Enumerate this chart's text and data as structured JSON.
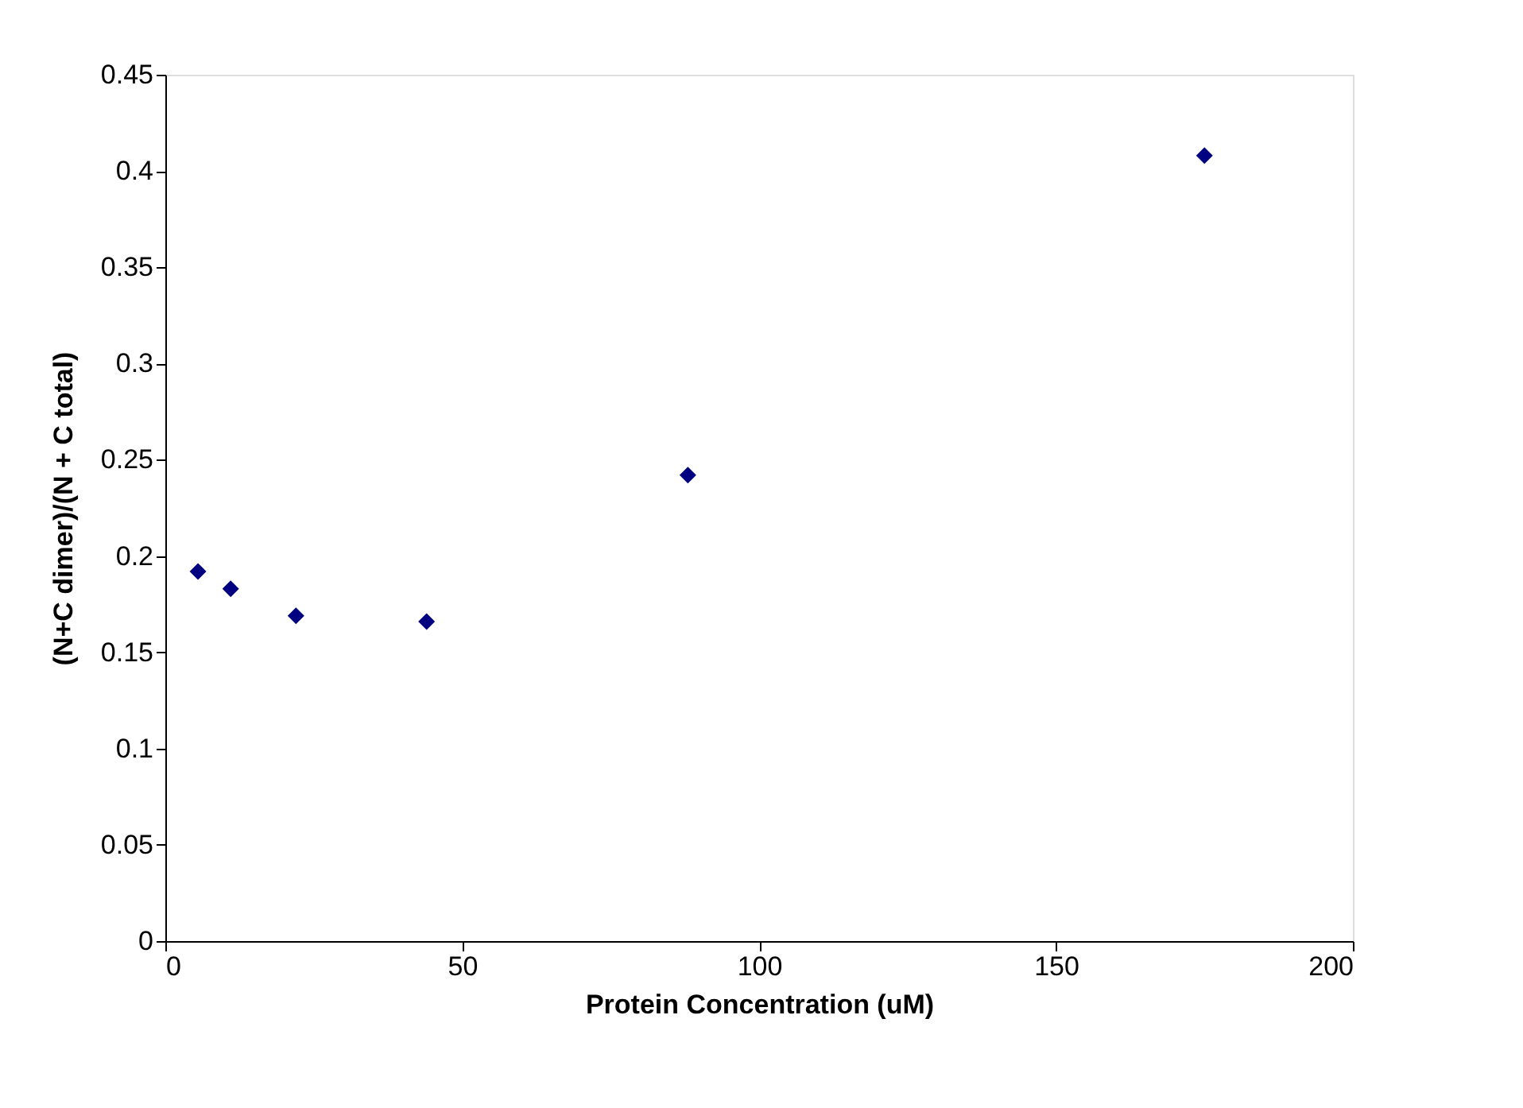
{
  "chart_data": {
    "type": "scatter",
    "xlabel": "Protein Concentration (uM)",
    "ylabel": "(N+C dimer)/(N + C total)",
    "x": [
      5.5,
      11,
      22,
      44,
      88,
      175
    ],
    "series": [
      {
        "color": "#000080",
        "values": [
          0.192,
          0.183,
          0.169,
          0.166,
          0.242,
          0.408
        ]
      }
    ],
    "xlim": [
      0,
      200
    ],
    "xticks": [
      0,
      50,
      100,
      150,
      200
    ],
    "ylim": [
      0,
      0.45
    ],
    "yticks": [
      0,
      0.05,
      0.1,
      0.15,
      0.2,
      0.25,
      0.3,
      0.35,
      0.4,
      0.45
    ],
    "grid": false,
    "legend": false,
    "marker": "diamond"
  }
}
